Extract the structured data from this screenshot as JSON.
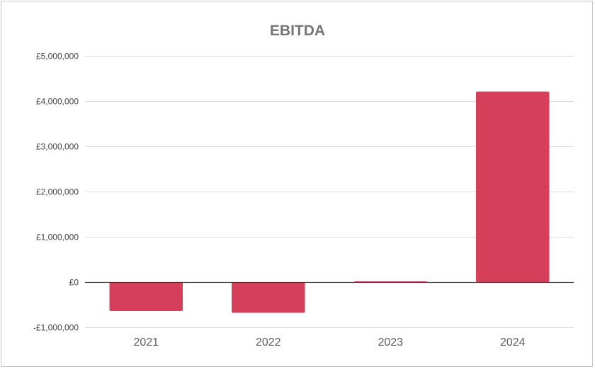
{
  "chart_data": {
    "type": "bar",
    "title": "EBITDA",
    "xlabel": "",
    "ylabel": "",
    "categories": [
      "2021",
      "2022",
      "2023",
      "2024"
    ],
    "values": [
      -640000,
      -680000,
      20000,
      4210000
    ],
    "ylim": [
      -1000000,
      5000000
    ],
    "yticks": [
      -1000000,
      0,
      1000000,
      2000000,
      3000000,
      4000000,
      5000000
    ],
    "ytick_labels": [
      "-£1,000,000",
      "£0",
      "£1,000,000",
      "£2,000,000",
      "£3,000,000",
      "£4,000,000",
      "£5,000,000"
    ],
    "grid": true,
    "legend": "none",
    "bar_color": "#d63f5a",
    "grid_color": "#d9d9d9",
    "zero_line_color": "#333333"
  }
}
